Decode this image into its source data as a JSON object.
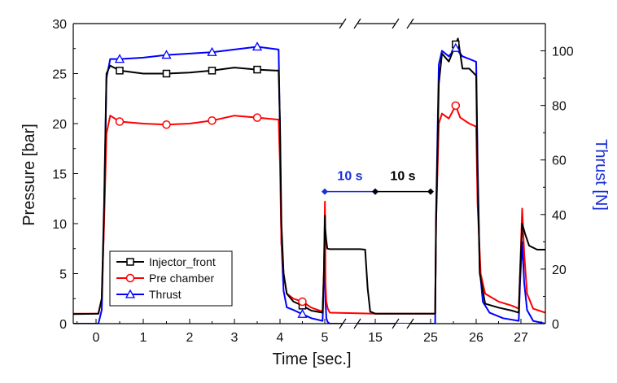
{
  "chart_data": {
    "type": "line",
    "xlabel": "Time [sec.]",
    "ylabel_left": "Pressure [bar]",
    "ylabel_right": "Thrust [N]",
    "ylim_left": [
      0,
      30
    ],
    "ylim_right": [
      0,
      110
    ],
    "yticks_left": [
      0,
      5,
      10,
      15,
      20,
      25,
      30
    ],
    "yticks_right": [
      0,
      20,
      40,
      60,
      80,
      100
    ],
    "x_tick_labels": [
      "0",
      "1",
      "2",
      "3",
      "4",
      "5",
      "15",
      "25",
      "26",
      "27"
    ],
    "axis_breaks": [
      "5-15",
      "15-25"
    ],
    "legend_position": "bottom-left",
    "annotations": [
      {
        "text": "10 s",
        "from_time": 5,
        "to_time": 15,
        "y_pressure": 13.2,
        "color": "#1a2fd6"
      },
      {
        "text": "10 s",
        "from_time": 15,
        "to_time": 25,
        "y_pressure": 13.2,
        "color": "#000000"
      }
    ],
    "series": [
      {
        "name": "Injector_front",
        "axis": "left",
        "color": "#000000",
        "marker": "square",
        "points": [
          [
            -0.6,
            0.95
          ],
          [
            0.05,
            1.0
          ],
          [
            0.12,
            2.5
          ],
          [
            0.17,
            12.0
          ],
          [
            0.22,
            25.0
          ],
          [
            0.3,
            25.8
          ],
          [
            0.5,
            25.3
          ],
          [
            1.0,
            25.0
          ],
          [
            1.5,
            25.0
          ],
          [
            2.0,
            25.1
          ],
          [
            2.5,
            25.3
          ],
          [
            3.0,
            25.6
          ],
          [
            3.5,
            25.4
          ],
          [
            3.9,
            25.3
          ],
          [
            3.97,
            25.3
          ],
          [
            4.0,
            20.0
          ],
          [
            4.03,
            10.0
          ],
          [
            4.08,
            5.0
          ],
          [
            4.15,
            3.0
          ],
          [
            4.3,
            2.2
          ],
          [
            4.5,
            1.8
          ],
          [
            4.7,
            1.3
          ],
          [
            4.95,
            1.1
          ],
          [
            4.98,
            5.0
          ],
          [
            5.03,
            10.8
          ],
          [
            5.1,
            9.5
          ],
          [
            5.25,
            8.5
          ],
          [
            5.5,
            7.5
          ],
          [
            6.0,
            7.45
          ],
          [
            12.0,
            7.45
          ],
          [
            13.0,
            7.4
          ],
          [
            13.5,
            3.5
          ],
          [
            14.0,
            1.2
          ],
          [
            15.0,
            1.0
          ],
          [
            25.0,
            1.0
          ],
          [
            25.1,
            1.0
          ],
          [
            25.12,
            10.0
          ],
          [
            25.18,
            24.0
          ],
          [
            25.25,
            27.0
          ],
          [
            25.4,
            26.2
          ],
          [
            25.6,
            28.5
          ],
          [
            25.7,
            25.5
          ],
          [
            25.85,
            25.5
          ],
          [
            26.0,
            24.8
          ],
          [
            26.03,
            15.0
          ],
          [
            26.08,
            5.0
          ],
          [
            26.2,
            2.0
          ],
          [
            26.5,
            1.6
          ],
          [
            26.8,
            1.3
          ],
          [
            26.95,
            1.1
          ],
          [
            26.98,
            5.0
          ],
          [
            27.03,
            10.0
          ],
          [
            27.1,
            9.0
          ],
          [
            27.2,
            7.8
          ],
          [
            27.4,
            7.4
          ],
          [
            27.6,
            7.4
          ]
        ]
      },
      {
        "name": "Pre chamber",
        "axis": "left",
        "color": "#ff0000",
        "marker": "circle",
        "points": [
          [
            -0.6,
            1.0
          ],
          [
            0.05,
            1.0
          ],
          [
            0.12,
            2.5
          ],
          [
            0.17,
            10.0
          ],
          [
            0.22,
            19.0
          ],
          [
            0.3,
            20.8
          ],
          [
            0.5,
            20.2
          ],
          [
            1.0,
            20.0
          ],
          [
            1.5,
            19.9
          ],
          [
            2.0,
            20.0
          ],
          [
            2.5,
            20.3
          ],
          [
            3.0,
            20.8
          ],
          [
            3.5,
            20.6
          ],
          [
            3.97,
            20.4
          ],
          [
            4.0,
            16.0
          ],
          [
            4.03,
            8.0
          ],
          [
            4.08,
            5.0
          ],
          [
            4.15,
            3.0
          ],
          [
            4.3,
            2.5
          ],
          [
            4.5,
            2.2
          ],
          [
            4.7,
            1.6
          ],
          [
            4.95,
            1.2
          ],
          [
            4.98,
            5.0
          ],
          [
            5.03,
            12.2
          ],
          [
            5.08,
            9.0
          ],
          [
            5.15,
            4.0
          ],
          [
            5.3,
            2.2
          ],
          [
            5.6,
            1.5
          ],
          [
            6.0,
            1.1
          ],
          [
            15.0,
            1.0
          ],
          [
            25.0,
            1.0
          ],
          [
            25.1,
            1.0
          ],
          [
            25.12,
            10.0
          ],
          [
            25.18,
            20.0
          ],
          [
            25.25,
            21.0
          ],
          [
            25.4,
            20.5
          ],
          [
            25.55,
            21.8
          ],
          [
            25.65,
            20.6
          ],
          [
            25.85,
            20.0
          ],
          [
            26.0,
            19.7
          ],
          [
            26.03,
            12.0
          ],
          [
            26.1,
            5.0
          ],
          [
            26.2,
            3.0
          ],
          [
            26.5,
            2.2
          ],
          [
            26.8,
            1.8
          ],
          [
            26.95,
            1.5
          ],
          [
            26.98,
            5.0
          ],
          [
            27.03,
            11.5
          ],
          [
            27.08,
            7.0
          ],
          [
            27.15,
            3.0
          ],
          [
            27.3,
            1.5
          ],
          [
            27.6,
            1.1
          ]
        ]
      },
      {
        "name": "Thrust",
        "axis": "right",
        "color": "#0000ff",
        "marker": "triangle",
        "points": [
          [
            -0.6,
            0.0
          ],
          [
            0.05,
            0.0
          ],
          [
            0.12,
            5.0
          ],
          [
            0.17,
            40.0
          ],
          [
            0.22,
            90.0
          ],
          [
            0.3,
            97.0
          ],
          [
            0.5,
            97.0
          ],
          [
            1.0,
            97.5
          ],
          [
            1.5,
            98.5
          ],
          [
            2.0,
            99.0
          ],
          [
            2.5,
            99.5
          ],
          [
            3.0,
            100.5
          ],
          [
            3.5,
            101.5
          ],
          [
            3.97,
            100.5
          ],
          [
            4.0,
            70.0
          ],
          [
            4.03,
            30.0
          ],
          [
            4.08,
            12.0
          ],
          [
            4.15,
            6.0
          ],
          [
            4.3,
            5.0
          ],
          [
            4.5,
            3.5
          ],
          [
            4.7,
            2.0
          ],
          [
            4.95,
            1.0
          ],
          [
            4.98,
            15.0
          ],
          [
            5.03,
            29.0
          ],
          [
            5.08,
            20.0
          ],
          [
            5.15,
            8.0
          ],
          [
            5.3,
            2.0
          ],
          [
            5.6,
            0.5
          ],
          [
            6.0,
            0.0
          ],
          [
            15.0,
            0.0
          ],
          [
            25.0,
            0.0
          ],
          [
            25.1,
            0.0
          ],
          [
            25.12,
            40.0
          ],
          [
            25.18,
            95.0
          ],
          [
            25.25,
            100.0
          ],
          [
            25.4,
            98.0
          ],
          [
            25.55,
            101.0
          ],
          [
            25.7,
            98.0
          ],
          [
            25.85,
            97.0
          ],
          [
            26.0,
            96.0
          ],
          [
            26.03,
            60.0
          ],
          [
            26.08,
            20.0
          ],
          [
            26.15,
            8.0
          ],
          [
            26.3,
            4.0
          ],
          [
            26.6,
            2.0
          ],
          [
            26.95,
            1.0
          ],
          [
            26.98,
            15.0
          ],
          [
            27.03,
            30.0
          ],
          [
            27.08,
            15.0
          ],
          [
            27.15,
            5.0
          ],
          [
            27.3,
            1.0
          ],
          [
            27.6,
            0.0
          ]
        ]
      }
    ]
  }
}
